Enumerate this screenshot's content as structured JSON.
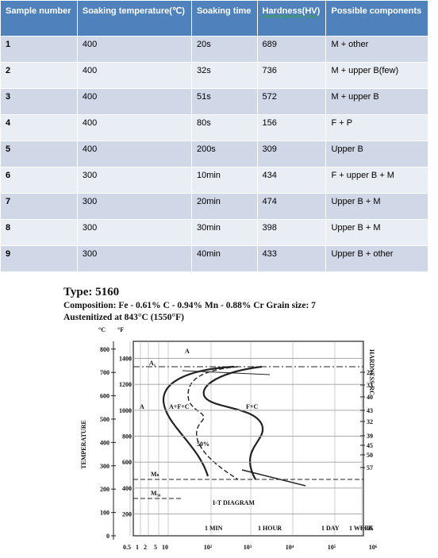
{
  "table": {
    "header": [
      "Sample number",
      "Soaking temperature(℃)",
      "Soaking time",
      "Hardness(HV)",
      "Possible components"
    ],
    "rows": [
      [
        "1",
        "400",
        "20s",
        "689",
        "M + other"
      ],
      [
        "2",
        "400",
        "32s",
        "736",
        "M + upper B(few)"
      ],
      [
        "3",
        "400",
        "51s",
        "572",
        "M + upper B"
      ],
      [
        "4",
        "400",
        "80s",
        "156",
        "F + P"
      ],
      [
        "5",
        "400",
        "200s",
        "309",
        "Upper B"
      ],
      [
        "6",
        "300",
        "10min",
        "434",
        "F + upper B + M"
      ],
      [
        "7",
        "300",
        "20min",
        "474",
        "Upper B + M"
      ],
      [
        "8",
        "300",
        "30min",
        "398",
        "Upper B + M"
      ],
      [
        "9",
        "300",
        "40min",
        "433",
        "Upper B + other"
      ]
    ]
  },
  "diagram": {
    "title": "Type: 5160",
    "composition": "Composition: Fe - 0.61% C - 0.94% Mn - 0.88% Cr Grain size: 7",
    "austenitized": "Austenitized at 843°C (1550°F)",
    "c_unit": "°C",
    "f_unit": "°F",
    "y_label": "TEMPERATURE",
    "right_label": "HARDNESS-RC",
    "c_ticks": [
      800,
      700,
      600,
      500,
      400,
      300,
      200,
      100,
      0
    ],
    "f_ticks": [
      1400,
      1200,
      1000,
      800,
      600,
      400,
      200
    ],
    "hardness_ticks": [
      22,
      33,
      40,
      43,
      32,
      39,
      45,
      50,
      57,
      65
    ],
    "x_ticks": [
      0.5,
      1,
      2,
      5,
      10,
      {
        "value": 100,
        "label": "10²"
      },
      {
        "value": 1000,
        "label": "10³"
      },
      {
        "value": 10000,
        "label": "10⁴"
      },
      {
        "value": 100000,
        "label": "10⁵"
      },
      {
        "value": 1000000,
        "label": "10⁶"
      }
    ],
    "time_marks": [
      "1 MIN",
      "1 HOUR",
      "1 DAY",
      "1 WEEK"
    ],
    "regions": [
      "A",
      "A₁",
      "A",
      "A+F+C",
      "F+C",
      "50%",
      "Mₛ",
      "M₅₀",
      "I-T DIAGRAM"
    ]
  }
}
